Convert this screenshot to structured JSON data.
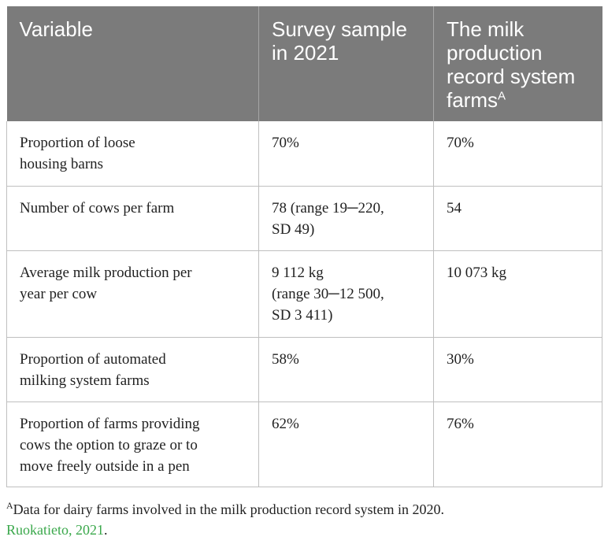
{
  "table": {
    "headers": [
      {
        "text": "Variable",
        "sup": ""
      },
      {
        "text": "Survey sample\nin 2021",
        "sup": ""
      },
      {
        "text": "The milk\nproduction\nrecord system\nfarms",
        "sup": "A"
      }
    ],
    "rows": [
      {
        "variable": "Proportion of loose\nhousing barns",
        "survey": "70%",
        "record": "70%"
      },
      {
        "variable": "Number of cows per farm",
        "survey": "78 (range 19─220,\nSD 49)",
        "record": "54"
      },
      {
        "variable": "Average milk production per\nyear per cow",
        "survey": "9 112 kg\n(range 30─12 500,\nSD 3 411)",
        "record": "10 073 kg"
      },
      {
        "variable": "Proportion of automated\nmilking system farms",
        "survey": "58%",
        "record": "30%"
      },
      {
        "variable": "Proportion of farms providing\ncows the option to graze or to\nmove freely outside in a pen",
        "survey": "62%",
        "record": "76%"
      }
    ]
  },
  "footnote": {
    "marker": "A",
    "text": "Data for dairy farms involved in the milk production record system in 2020.",
    "reference": "Ruokatieto, 2021",
    "trailing": "."
  },
  "colors": {
    "header_bg": "#7b7b7b",
    "header_text": "#ffffff",
    "border": "#bfbfbf",
    "reference_link": "#3aa84b"
  }
}
